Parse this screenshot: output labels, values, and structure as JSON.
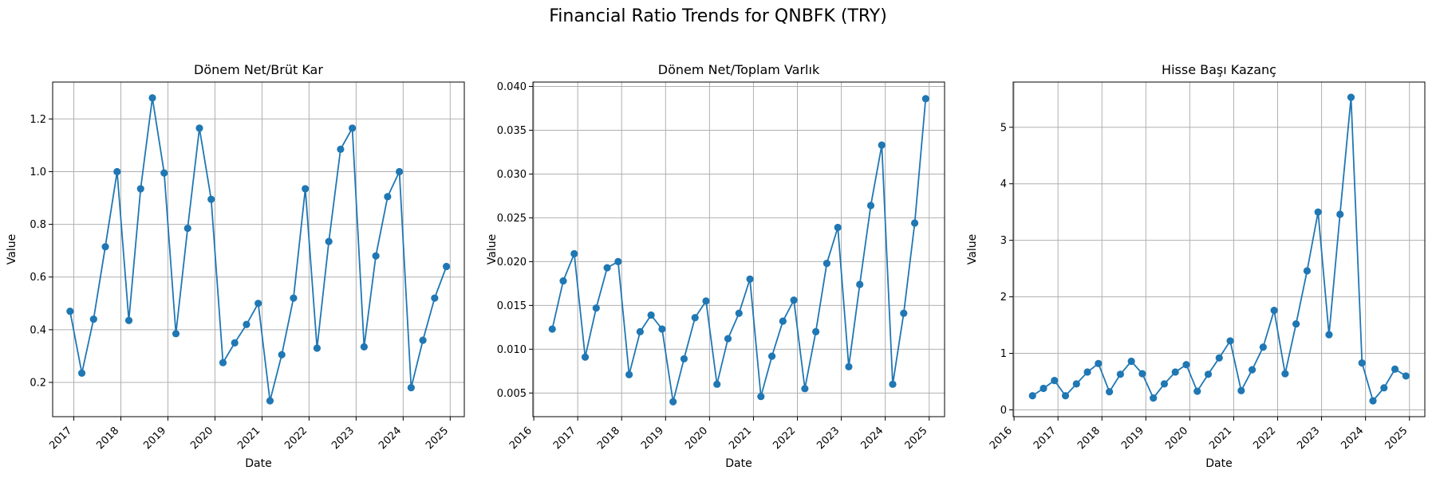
{
  "suptitle": "Financial Ratio Trends for QNBFK (TRY)",
  "colors": {
    "line": "#1f77b4",
    "grid": "#b0b0b0",
    "axis": "#000000"
  },
  "chart_data": [
    {
      "type": "line",
      "title": "Dönem Net/Brüt Kar",
      "xlabel": "Date",
      "ylabel": "Value",
      "grid": true,
      "marker": "circle",
      "xlim": [
        2016.55,
        2025.3
      ],
      "ylim": [
        0.07,
        1.34
      ],
      "yticks": [
        0.2,
        0.4,
        0.6,
        0.8,
        1.0,
        1.2
      ],
      "ytick_labels": [
        "0.2",
        "0.4",
        "0.6",
        "0.8",
        "1.0",
        "1.2"
      ],
      "xticks": [
        2017,
        2018,
        2019,
        2020,
        2021,
        2022,
        2023,
        2024,
        2025
      ],
      "xtick_labels": [
        "2017",
        "2018",
        "2019",
        "2020",
        "2021",
        "2022",
        "2023",
        "2024",
        "2025"
      ],
      "x": [
        2016.92,
        2017.17,
        2017.42,
        2017.67,
        2017.92,
        2018.17,
        2018.42,
        2018.67,
        2018.92,
        2019.17,
        2019.42,
        2019.67,
        2019.92,
        2020.17,
        2020.42,
        2020.67,
        2020.92,
        2021.17,
        2021.42,
        2021.67,
        2021.92,
        2022.17,
        2022.42,
        2022.67,
        2022.92,
        2023.17,
        2023.42,
        2023.67,
        2023.92,
        2024.17,
        2024.42,
        2024.67,
        2024.92
      ],
      "y": [
        0.47,
        0.235,
        0.44,
        0.715,
        1.0,
        0.435,
        0.935,
        1.28,
        0.995,
        0.385,
        0.785,
        1.165,
        0.895,
        0.275,
        0.35,
        0.42,
        0.5,
        0.13,
        0.305,
        0.52,
        0.935,
        0.33,
        0.735,
        1.085,
        1.165,
        0.335,
        0.68,
        0.905,
        1.0,
        0.18,
        0.36,
        0.52,
        0.64
      ]
    },
    {
      "type": "line",
      "title": "Dönem Net/Toplam Varlık",
      "xlabel": "Date",
      "ylabel": "Value",
      "grid": true,
      "marker": "circle",
      "xlim": [
        2015.98,
        2025.35
      ],
      "ylim": [
        0.0023,
        0.0405
      ],
      "yticks": [
        0.005,
        0.01,
        0.015,
        0.02,
        0.025,
        0.03,
        0.035,
        0.04
      ],
      "ytick_labels": [
        "0.005",
        "0.010",
        "0.015",
        "0.020",
        "0.025",
        "0.030",
        "0.035",
        "0.040"
      ],
      "xticks": [
        2016,
        2017,
        2018,
        2019,
        2020,
        2021,
        2022,
        2023,
        2024,
        2025
      ],
      "xtick_labels": [
        "2016",
        "2017",
        "2018",
        "2019",
        "2020",
        "2021",
        "2022",
        "2023",
        "2024",
        "2025"
      ],
      "x": [
        2016.42,
        2016.67,
        2016.92,
        2017.17,
        2017.42,
        2017.67,
        2017.92,
        2018.17,
        2018.42,
        2018.67,
        2018.92,
        2019.17,
        2019.42,
        2019.67,
        2019.92,
        2020.17,
        2020.42,
        2020.67,
        2020.92,
        2021.17,
        2021.42,
        2021.67,
        2021.92,
        2022.17,
        2022.42,
        2022.67,
        2022.92,
        2023.17,
        2023.42,
        2023.67,
        2023.92,
        2024.17,
        2024.42,
        2024.67,
        2024.92
      ],
      "y": [
        0.0123,
        0.0178,
        0.0209,
        0.0091,
        0.0147,
        0.0193,
        0.02,
        0.0071,
        0.012,
        0.0139,
        0.0123,
        0.004,
        0.0089,
        0.0136,
        0.0155,
        0.006,
        0.0112,
        0.0141,
        0.018,
        0.0046,
        0.0092,
        0.0132,
        0.0156,
        0.0055,
        0.012,
        0.0198,
        0.0239,
        0.008,
        0.0174,
        0.0264,
        0.0333,
        0.006,
        0.0141,
        0.0244,
        0.0386
      ]
    },
    {
      "type": "line",
      "title": "Hisse Başı Kazanç",
      "xlabel": "Date",
      "ylabel": "Value",
      "grid": true,
      "marker": "circle",
      "xlim": [
        2015.98,
        2025.35
      ],
      "ylim": [
        -0.12,
        5.8
      ],
      "yticks": [
        0,
        1,
        2,
        3,
        4,
        5
      ],
      "ytick_labels": [
        "0",
        "1",
        "2",
        "3",
        "4",
        "5"
      ],
      "xticks": [
        2016,
        2017,
        2018,
        2019,
        2020,
        2021,
        2022,
        2023,
        2024,
        2025
      ],
      "xtick_labels": [
        "2016",
        "2017",
        "2018",
        "2019",
        "2020",
        "2021",
        "2022",
        "2023",
        "2024",
        "2025"
      ],
      "x": [
        2016.42,
        2016.67,
        2016.92,
        2017.17,
        2017.42,
        2017.67,
        2017.92,
        2018.17,
        2018.42,
        2018.67,
        2018.92,
        2019.17,
        2019.42,
        2019.67,
        2019.92,
        2020.17,
        2020.42,
        2020.67,
        2020.92,
        2021.17,
        2021.42,
        2021.67,
        2021.92,
        2022.17,
        2022.42,
        2022.67,
        2022.92,
        2023.17,
        2023.42,
        2023.67,
        2023.92,
        2024.17,
        2024.42,
        2024.67,
        2024.92
      ],
      "y": [
        0.25,
        0.38,
        0.52,
        0.25,
        0.46,
        0.67,
        0.82,
        0.32,
        0.63,
        0.86,
        0.64,
        0.21,
        0.46,
        0.67,
        0.8,
        0.33,
        0.63,
        0.92,
        1.22,
        0.34,
        0.71,
        1.11,
        1.76,
        0.64,
        1.52,
        2.46,
        3.5,
        1.33,
        3.46,
        5.53,
        0.83,
        0.16,
        0.39,
        0.72,
        0.6
      ]
    }
  ]
}
